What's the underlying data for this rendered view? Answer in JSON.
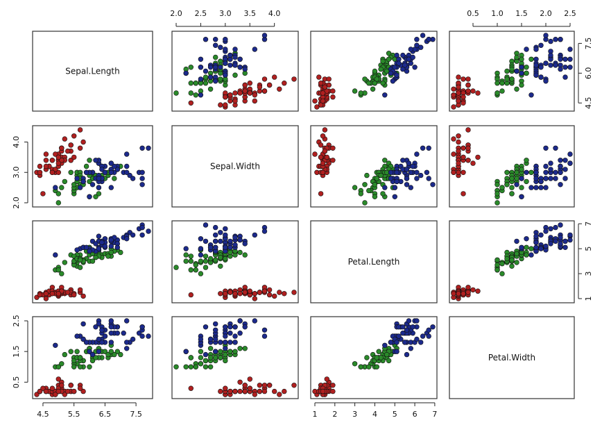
{
  "chart_data": {
    "type": "scatter-matrix",
    "title": "",
    "variables": [
      "Sepal.Length",
      "Sepal.Width",
      "Petal.Length",
      "Petal.Width"
    ],
    "ranges": {
      "Sepal.Length": [
        4.3,
        7.9
      ],
      "Sepal.Width": [
        2.0,
        4.4
      ],
      "Petal.Length": [
        1.0,
        6.9
      ],
      "Petal.Width": [
        0.1,
        2.5
      ]
    },
    "ticks": {
      "Sepal.Length": [
        "4.5",
        "5.5",
        "6.5",
        "7.5"
      ],
      "Sepal.Width": [
        "2.0",
        "2.5",
        "3.0",
        "3.5",
        "4.0"
      ],
      "Sepal.Width.left": [
        "2.0",
        "3.0",
        "4.0"
      ],
      "Petal.Length": [
        "1",
        "2",
        "3",
        "4",
        "5",
        "6",
        "7"
      ],
      "Petal.Length.right": [
        "1",
        "3",
        "5",
        "7"
      ],
      "Petal.Width": [
        "0.5",
        "1.0",
        "1.5",
        "2.0",
        "2.5"
      ],
      "Petal.Width.left": [
        "0.5",
        "1.5",
        "2.5"
      ],
      "Sepal.Length.right": [
        "4.5",
        "6.0",
        "7.5"
      ]
    },
    "groups": [
      {
        "color": "#b02020",
        "points": [
          [
            5.1,
            3.5,
            1.4,
            0.2
          ],
          [
            4.9,
            3.0,
            1.4,
            0.2
          ],
          [
            4.7,
            3.2,
            1.3,
            0.2
          ],
          [
            4.6,
            3.1,
            1.5,
            0.2
          ],
          [
            5.0,
            3.6,
            1.4,
            0.2
          ],
          [
            5.4,
            3.9,
            1.7,
            0.4
          ],
          [
            4.6,
            3.4,
            1.4,
            0.3
          ],
          [
            5.0,
            3.4,
            1.5,
            0.2
          ],
          [
            4.4,
            2.9,
            1.4,
            0.2
          ],
          [
            4.9,
            3.1,
            1.5,
            0.1
          ],
          [
            5.4,
            3.7,
            1.5,
            0.2
          ],
          [
            4.8,
            3.4,
            1.6,
            0.2
          ],
          [
            4.8,
            3.0,
            1.4,
            0.1
          ],
          [
            4.3,
            3.0,
            1.1,
            0.1
          ],
          [
            5.8,
            4.0,
            1.2,
            0.2
          ],
          [
            5.7,
            4.4,
            1.5,
            0.4
          ],
          [
            5.4,
            3.9,
            1.3,
            0.4
          ],
          [
            5.1,
            3.5,
            1.4,
            0.3
          ],
          [
            5.7,
            3.8,
            1.7,
            0.3
          ],
          [
            5.1,
            3.8,
            1.5,
            0.3
          ],
          [
            5.4,
            3.4,
            1.7,
            0.2
          ],
          [
            5.1,
            3.7,
            1.5,
            0.4
          ],
          [
            4.6,
            3.6,
            1.0,
            0.2
          ],
          [
            5.1,
            3.3,
            1.7,
            0.5
          ],
          [
            4.8,
            3.4,
            1.9,
            0.2
          ],
          [
            5.0,
            3.0,
            1.6,
            0.2
          ],
          [
            5.0,
            3.4,
            1.6,
            0.4
          ],
          [
            5.2,
            3.5,
            1.5,
            0.2
          ],
          [
            5.2,
            3.4,
            1.4,
            0.2
          ],
          [
            4.7,
            3.2,
            1.6,
            0.2
          ],
          [
            4.8,
            3.1,
            1.6,
            0.2
          ],
          [
            5.4,
            3.4,
            1.5,
            0.4
          ],
          [
            5.2,
            4.1,
            1.5,
            0.1
          ],
          [
            5.5,
            4.2,
            1.4,
            0.2
          ],
          [
            4.9,
            3.1,
            1.5,
            0.2
          ],
          [
            5.0,
            3.2,
            1.2,
            0.2
          ],
          [
            5.5,
            3.5,
            1.3,
            0.2
          ],
          [
            4.9,
            3.6,
            1.4,
            0.1
          ],
          [
            4.4,
            3.0,
            1.3,
            0.2
          ],
          [
            5.1,
            3.4,
            1.5,
            0.2
          ],
          [
            5.0,
            3.5,
            1.3,
            0.3
          ],
          [
            4.5,
            2.3,
            1.3,
            0.3
          ],
          [
            4.4,
            3.2,
            1.3,
            0.2
          ],
          [
            5.0,
            3.5,
            1.6,
            0.6
          ],
          [
            5.1,
            3.8,
            1.9,
            0.4
          ],
          [
            4.8,
            3.0,
            1.4,
            0.3
          ],
          [
            5.1,
            3.8,
            1.6,
            0.2
          ],
          [
            4.6,
            3.2,
            1.4,
            0.2
          ],
          [
            5.3,
            3.7,
            1.5,
            0.2
          ],
          [
            5.0,
            3.3,
            1.4,
            0.2
          ]
        ]
      },
      {
        "color": "#2a8a2a",
        "points": [
          [
            7.0,
            3.2,
            4.7,
            1.4
          ],
          [
            6.4,
            3.2,
            4.5,
            1.5
          ],
          [
            6.9,
            3.1,
            4.9,
            1.5
          ],
          [
            5.5,
            2.3,
            4.0,
            1.3
          ],
          [
            6.5,
            2.8,
            4.6,
            1.5
          ],
          [
            5.7,
            2.8,
            4.5,
            1.3
          ],
          [
            6.3,
            3.3,
            4.7,
            1.6
          ],
          [
            4.9,
            2.4,
            3.3,
            1.0
          ],
          [
            6.6,
            2.9,
            4.6,
            1.3
          ],
          [
            5.2,
            2.7,
            3.9,
            1.4
          ],
          [
            5.0,
            2.0,
            3.5,
            1.0
          ],
          [
            5.9,
            3.0,
            4.2,
            1.5
          ],
          [
            6.0,
            2.2,
            4.0,
            1.0
          ],
          [
            6.1,
            2.9,
            4.7,
            1.4
          ],
          [
            5.6,
            2.9,
            3.6,
            1.3
          ],
          [
            6.7,
            3.1,
            4.4,
            1.4
          ],
          [
            5.6,
            3.0,
            4.5,
            1.5
          ],
          [
            5.8,
            2.7,
            4.1,
            1.0
          ],
          [
            6.2,
            2.2,
            4.5,
            1.5
          ],
          [
            5.6,
            2.5,
            3.9,
            1.1
          ],
          [
            5.9,
            3.2,
            4.8,
            1.8
          ],
          [
            6.1,
            2.8,
            4.0,
            1.3
          ],
          [
            6.3,
            2.5,
            4.9,
            1.5
          ],
          [
            6.1,
            2.8,
            4.7,
            1.2
          ],
          [
            6.4,
            2.9,
            4.3,
            1.3
          ],
          [
            6.6,
            3.0,
            4.4,
            1.4
          ],
          [
            6.8,
            2.8,
            4.8,
            1.4
          ],
          [
            6.7,
            3.0,
            5.0,
            1.7
          ],
          [
            6.0,
            2.9,
            4.5,
            1.5
          ],
          [
            5.7,
            2.6,
            3.5,
            1.0
          ],
          [
            5.5,
            2.4,
            3.8,
            1.1
          ],
          [
            5.5,
            2.4,
            3.7,
            1.0
          ],
          [
            5.8,
            2.7,
            3.9,
            1.2
          ],
          [
            6.0,
            2.7,
            5.1,
            1.6
          ],
          [
            5.4,
            3.0,
            4.5,
            1.5
          ],
          [
            6.0,
            3.4,
            4.5,
            1.6
          ],
          [
            6.7,
            3.1,
            4.7,
            1.5
          ],
          [
            6.3,
            2.3,
            4.4,
            1.3
          ],
          [
            5.6,
            3.0,
            4.1,
            1.3
          ],
          [
            5.5,
            2.5,
            4.0,
            1.3
          ],
          [
            5.5,
            2.6,
            4.4,
            1.2
          ],
          [
            6.1,
            3.0,
            4.6,
            1.4
          ],
          [
            5.8,
            2.6,
            4.0,
            1.2
          ],
          [
            5.0,
            2.3,
            3.3,
            1.0
          ],
          [
            5.6,
            2.7,
            4.2,
            1.3
          ],
          [
            5.7,
            3.0,
            4.2,
            1.2
          ],
          [
            5.7,
            2.9,
            4.2,
            1.3
          ],
          [
            6.2,
            2.9,
            4.3,
            1.3
          ],
          [
            5.1,
            2.5,
            3.0,
            1.1
          ],
          [
            5.7,
            2.8,
            4.1,
            1.3
          ]
        ]
      },
      {
        "color": "#1c2a8c",
        "points": [
          [
            6.3,
            3.3,
            6.0,
            2.5
          ],
          [
            5.8,
            2.7,
            5.1,
            1.9
          ],
          [
            7.1,
            3.0,
            5.9,
            2.1
          ],
          [
            6.3,
            2.9,
            5.6,
            1.8
          ],
          [
            6.5,
            3.0,
            5.8,
            2.2
          ],
          [
            7.6,
            3.0,
            6.6,
            2.1
          ],
          [
            4.9,
            2.5,
            4.5,
            1.7
          ],
          [
            7.3,
            2.9,
            6.3,
            1.8
          ],
          [
            6.7,
            2.5,
            5.8,
            1.8
          ],
          [
            7.2,
            3.6,
            6.1,
            2.5
          ],
          [
            6.5,
            3.2,
            5.1,
            2.0
          ],
          [
            6.4,
            2.7,
            5.3,
            1.9
          ],
          [
            6.8,
            3.0,
            5.5,
            2.1
          ],
          [
            5.7,
            2.5,
            5.0,
            2.0
          ],
          [
            5.8,
            2.8,
            5.1,
            2.4
          ],
          [
            6.4,
            3.2,
            5.3,
            2.3
          ],
          [
            6.5,
            3.0,
            5.5,
            1.8
          ],
          [
            7.7,
            3.8,
            6.7,
            2.2
          ],
          [
            7.7,
            2.6,
            6.9,
            2.3
          ],
          [
            6.0,
            2.2,
            5.0,
            1.5
          ],
          [
            6.9,
            3.2,
            5.7,
            2.3
          ],
          [
            5.6,
            2.8,
            4.9,
            2.0
          ],
          [
            7.7,
            2.8,
            6.7,
            2.0
          ],
          [
            6.3,
            2.7,
            4.9,
            1.8
          ],
          [
            6.7,
            3.3,
            5.7,
            2.1
          ],
          [
            7.2,
            3.2,
            6.0,
            1.8
          ],
          [
            6.2,
            2.8,
            4.8,
            1.8
          ],
          [
            6.1,
            3.0,
            4.9,
            1.8
          ],
          [
            6.4,
            2.8,
            5.6,
            2.1
          ],
          [
            7.2,
            3.0,
            5.8,
            1.6
          ],
          [
            7.4,
            2.8,
            6.1,
            1.9
          ],
          [
            7.9,
            3.8,
            6.4,
            2.0
          ],
          [
            6.4,
            2.8,
            5.6,
            2.2
          ],
          [
            6.3,
            2.8,
            5.1,
            1.5
          ],
          [
            6.1,
            2.6,
            5.6,
            1.4
          ],
          [
            7.7,
            3.0,
            6.1,
            2.3
          ],
          [
            6.3,
            3.4,
            5.6,
            2.4
          ],
          [
            6.4,
            3.1,
            5.5,
            1.8
          ],
          [
            6.0,
            3.0,
            4.8,
            1.8
          ],
          [
            6.9,
            3.1,
            5.4,
            2.1
          ],
          [
            6.7,
            3.1,
            5.6,
            2.4
          ],
          [
            6.9,
            3.1,
            5.1,
            2.3
          ],
          [
            5.8,
            2.7,
            5.1,
            1.9
          ],
          [
            6.8,
            3.2,
            5.9,
            2.3
          ],
          [
            6.7,
            3.3,
            5.7,
            2.5
          ],
          [
            6.7,
            3.0,
            5.2,
            2.3
          ],
          [
            6.3,
            2.5,
            5.0,
            1.9
          ],
          [
            6.5,
            3.0,
            5.2,
            2.0
          ],
          [
            6.2,
            3.4,
            5.4,
            2.3
          ],
          [
            5.9,
            3.0,
            5.1,
            1.8
          ]
        ]
      }
    ]
  }
}
